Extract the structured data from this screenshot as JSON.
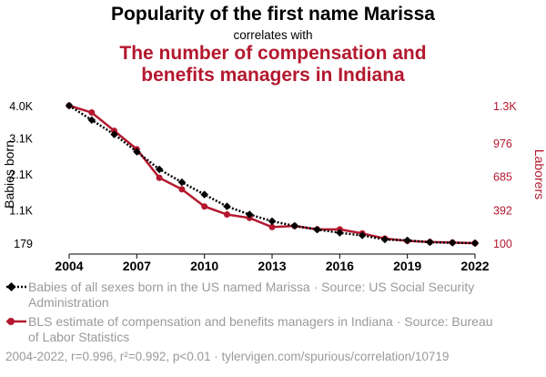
{
  "chart_data": {
    "type": "line",
    "title": "Popularity of the first name Marissa",
    "subtitle": "correlates with",
    "title2": "The number of compensation and benefits managers in Indiana",
    "x": [
      2004,
      2005,
      2006,
      2007,
      2008,
      2009,
      2010,
      2011,
      2012,
      2013,
      2014,
      2015,
      2016,
      2017,
      2018,
      2019,
      2020,
      2021,
      2022
    ],
    "xticks": [
      "2004",
      "2007",
      "2010",
      "2013",
      "2016",
      "2019",
      "2022"
    ],
    "xlim": [
      2004,
      2022
    ],
    "series": [
      {
        "name": "Babies of all sexes born in the US named Marissa · Source: US Social Security Administration",
        "axis": "left",
        "color": "#000000",
        "style": "dotted",
        "values": [
          4000,
          3600,
          3200,
          2720,
          2230,
          1870,
          1530,
          1200,
          975,
          790,
          660,
          555,
          467,
          395,
          279,
          255,
          205,
          190,
          179
        ]
      },
      {
        "name": "BLS estimate of compensation and benefits managers in Indiana · Source: Bureau of Labor Statistics",
        "axis": "right",
        "color": "#b3182e",
        "style": "solid",
        "values": [
          1300,
          1240,
          1080,
          920,
          670,
          570,
          420,
          350,
          320,
          240,
          250,
          220,
          220,
          185,
          140,
          120,
          110,
          105,
          100
        ]
      }
    ],
    "left_axis": {
      "label": "Babies born",
      "ticks": [
        "4.0K",
        "3.1K",
        "2.1K",
        "1.1K",
        "179"
      ],
      "tick_values": [
        4000,
        3100,
        2100,
        1100,
        179
      ],
      "ylim": [
        179,
        4000
      ]
    },
    "right_axis": {
      "label": "Laborers",
      "ticks": [
        "1.3K",
        "976",
        "685",
        "392",
        "100"
      ],
      "tick_values": [
        1300,
        976,
        685,
        392,
        100
      ],
      "ylim": [
        100,
        1300
      ],
      "color": "#b3182e"
    },
    "footer": "2004-2022, r=0.996, r²=0.992, p<0.01 · tylervigen.com/spurious/correlation/10719",
    "legend_position": "bottom",
    "grid": false
  }
}
